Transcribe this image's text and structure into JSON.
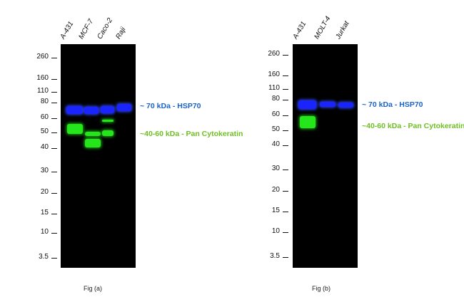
{
  "panel_a": {
    "lanes": [
      "A-431",
      "MCF-7",
      "Caco-2",
      "Raji"
    ],
    "markers": [
      "260",
      "160",
      "110",
      "80",
      "60",
      "50",
      "40",
      "30",
      "20",
      "15",
      "10",
      "3.5"
    ],
    "hsp70_label": "~ 70 kDa - HSP70",
    "cytokeratin_label": "~40-60 kDa - Pan Cytokeratin",
    "caption": "Fig (a)"
  },
  "panel_b": {
    "lanes": [
      "A-431",
      "MOLT-4",
      "Jurkat"
    ],
    "markers": [
      "260",
      "160",
      "110",
      "80",
      "60",
      "50",
      "40",
      "30",
      "20",
      "15",
      "10",
      "3.5"
    ],
    "hsp70_label": "~ 70 kDa - HSP70",
    "cytokeratin_label": "~40-60 kDa - Pan Cytokeratin",
    "caption": "Fig (b)"
  },
  "colors": {
    "hsp70": "#1a24ff",
    "cytokeratin": "#25e61a"
  }
}
